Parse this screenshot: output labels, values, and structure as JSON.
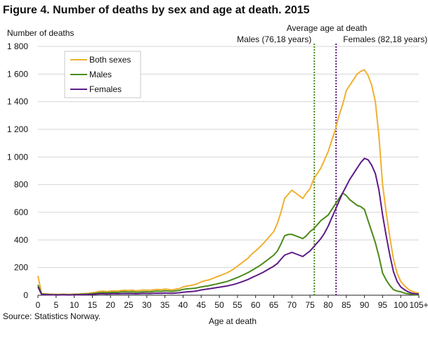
{
  "chart_data": {
    "type": "line",
    "title": "Figure 4. Number of deaths by sex and age at death. 2015",
    "ylabel": "Number of deaths",
    "xlabel": "Age at death",
    "ylim": [
      0,
      1800
    ],
    "yticks": [
      0,
      200,
      400,
      600,
      800,
      1000,
      1200,
      1400,
      1600,
      1800
    ],
    "ytick_labels": [
      "0",
      "200",
      "400",
      "600",
      "800",
      "1 000",
      "1 200",
      "1 400",
      "1 600",
      "1 800"
    ],
    "xlim": [
      0,
      105
    ],
    "xticks": [
      0,
      5,
      10,
      15,
      20,
      25,
      30,
      35,
      40,
      45,
      50,
      55,
      60,
      65,
      70,
      75,
      80,
      85,
      90,
      95,
      100,
      105
    ],
    "xtick_labels": [
      "0",
      "5",
      "10",
      "15",
      "20",
      "25",
      "30",
      "35",
      "40",
      "45",
      "50",
      "55",
      "60",
      "65",
      "70",
      "75",
      "80",
      "85",
      "90",
      "95",
      "100",
      "105+"
    ],
    "grid": "horizontal",
    "legend_position": "top-left",
    "x": [
      0,
      1,
      2,
      3,
      4,
      5,
      6,
      7,
      8,
      9,
      10,
      11,
      12,
      13,
      14,
      15,
      16,
      17,
      18,
      19,
      20,
      21,
      22,
      23,
      24,
      25,
      26,
      27,
      28,
      29,
      30,
      31,
      32,
      33,
      34,
      35,
      36,
      37,
      38,
      39,
      40,
      41,
      42,
      43,
      44,
      45,
      46,
      47,
      48,
      49,
      50,
      51,
      52,
      53,
      54,
      55,
      56,
      57,
      58,
      59,
      60,
      61,
      62,
      63,
      64,
      65,
      66,
      67,
      68,
      69,
      70,
      71,
      72,
      73,
      74,
      75,
      76,
      77,
      78,
      79,
      80,
      81,
      82,
      83,
      84,
      85,
      86,
      87,
      88,
      89,
      90,
      91,
      92,
      93,
      94,
      95,
      96,
      97,
      98,
      99,
      100,
      101,
      102,
      103,
      104,
      105
    ],
    "series": [
      {
        "name": "Both sexes",
        "color": "#f0b030",
        "values": [
          140,
          12,
          10,
          8,
          7,
          6,
          6,
          7,
          6,
          6,
          8,
          8,
          10,
          12,
          14,
          18,
          22,
          28,
          30,
          26,
          30,
          32,
          30,
          34,
          36,
          34,
          36,
          32,
          34,
          38,
          36,
          36,
          40,
          42,
          40,
          44,
          42,
          38,
          44,
          48,
          60,
          66,
          70,
          76,
          84,
          96,
          104,
          110,
          120,
          130,
          140,
          150,
          160,
          175,
          190,
          210,
          230,
          250,
          270,
          300,
          320,
          345,
          370,
          400,
          430,
          460,
          520,
          600,
          700,
          730,
          760,
          740,
          720,
          700,
          740,
          770,
          840,
          880,
          920,
          980,
          1040,
          1120,
          1200,
          1300,
          1380,
          1480,
          1520,
          1560,
          1600,
          1620,
          1630,
          1590,
          1520,
          1400,
          1150,
          800,
          600,
          420,
          260,
          160,
          100,
          70,
          45,
          30,
          20,
          15
        ],
        "chart_values_note": ""
      },
      {
        "name": "Males",
        "color": "#4b8a1a",
        "values": [
          75,
          8,
          7,
          5,
          4,
          4,
          4,
          5,
          4,
          4,
          5,
          5,
          7,
          8,
          9,
          12,
          14,
          18,
          20,
          18,
          20,
          22,
          20,
          24,
          25,
          23,
          25,
          22,
          23,
          25,
          25,
          24,
          28,
          30,
          28,
          32,
          30,
          28,
          32,
          35,
          42,
          46,
          48,
          50,
          54,
          60,
          64,
          68,
          74,
          80,
          86,
          92,
          98,
          108,
          118,
          128,
          140,
          152,
          165,
          180,
          196,
          212,
          230,
          250,
          270,
          290,
          320,
          370,
          430,
          440,
          440,
          430,
          420,
          410,
          430,
          460,
          480,
          510,
          540,
          560,
          580,
          620,
          660,
          700,
          740,
          720,
          690,
          670,
          650,
          640,
          620,
          540,
          460,
          380,
          280,
          160,
          110,
          70,
          40,
          30,
          25,
          15,
          10,
          6,
          4,
          3
        ]
      },
      {
        "name": "Females",
        "color": "#5e1a87",
        "values": [
          60,
          5,
          4,
          3,
          3,
          2,
          2,
          3,
          2,
          2,
          3,
          3,
          4,
          4,
          5,
          6,
          8,
          10,
          10,
          9,
          10,
          11,
          10,
          11,
          12,
          11,
          12,
          10,
          11,
          13,
          12,
          12,
          14,
          15,
          14,
          16,
          15,
          14,
          16,
          18,
          22,
          24,
          26,
          28,
          32,
          38,
          42,
          46,
          50,
          54,
          58,
          62,
          66,
          72,
          78,
          86,
          95,
          105,
          115,
          128,
          140,
          152,
          165,
          180,
          195,
          210,
          230,
          260,
          290,
          300,
          310,
          300,
          290,
          280,
          300,
          320,
          350,
          380,
          410,
          450,
          500,
          560,
          620,
          680,
          740,
          790,
          840,
          880,
          920,
          960,
          990,
          980,
          940,
          880,
          760,
          580,
          430,
          290,
          170,
          100,
          60,
          40,
          25,
          15,
          10,
          8
        ]
      }
    ],
    "reference_lines": [
      {
        "x": 76.18,
        "color": "#4b8a1a",
        "label": "Males (76,18 years)"
      },
      {
        "x": 82.18,
        "color": "#5e1a87",
        "label": "Females (82,18 years)"
      }
    ],
    "reference_header": "Average age at death"
  },
  "source": "Source: Statistics Norway."
}
